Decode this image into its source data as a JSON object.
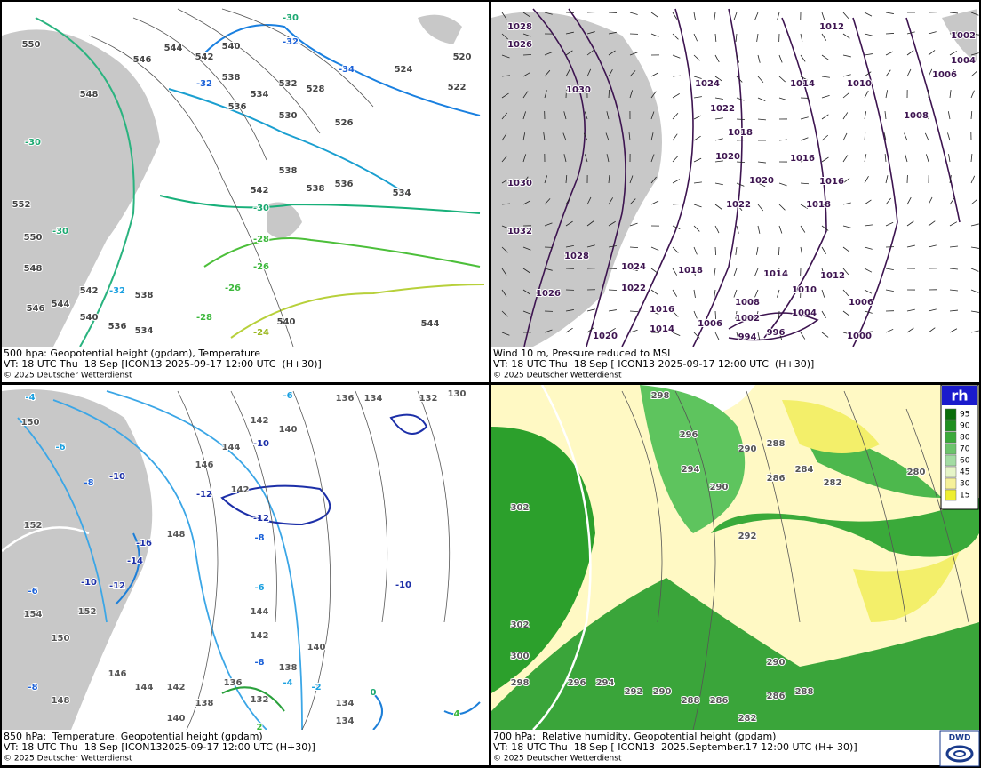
{
  "panels": [
    {
      "caption": {
        "title": "500 hpa: Geopotential height (gpdam), Temperature",
        "valid": "VT: 18 UTC Thu  18 Sep [ICON13 2025-09-17 12:00 UTC  (H+30)]",
        "copyright": "© 2025 Deutscher Wetterdienst"
      },
      "labels": [
        "550",
        "546",
        "544",
        "542",
        "540",
        "538",
        "536",
        "534",
        "532",
        "530",
        "528",
        "526",
        "524",
        "522",
        "520",
        "548",
        "552",
        "550",
        "548",
        "546",
        "544",
        "542",
        "540",
        "538",
        "536",
        "534",
        "538",
        "538",
        "536",
        "534",
        "542",
        "540",
        "544",
        "-30",
        "-32",
        "-34",
        "-32",
        "-30",
        "-30",
        "-30",
        "-28",
        "-26",
        "-26",
        "-28",
        "-24",
        "-32"
      ]
    },
    {
      "caption": {
        "title": "Wind 10 m, Pressure reduced to MSL",
        "valid": "VT: 18 UTC Thu  18 Sep [ ICON13 2025-09-17 12:00 UTC  (H+30)]",
        "copyright": "© 2025 Deutscher Wetterdienst"
      },
      "labels": [
        "1028",
        "1026",
        "1030",
        "1024",
        "1022",
        "1018",
        "1020",
        "1020",
        "1022",
        "1018",
        "1016",
        "1016",
        "1014",
        "1010",
        "1012",
        "1002",
        "1004",
        "1006",
        "1008",
        "1030",
        "1032",
        "1028",
        "1026",
        "1024",
        "1022",
        "1018",
        "1016",
        "1014",
        "1020",
        "1014",
        "1012",
        "1010",
        "1008",
        "1006",
        "1002",
        "1004",
        "1006",
        "996",
        "994",
        "1000"
      ]
    },
    {
      "caption": {
        "title": "850 hPa:  Temperature, Geopotential height (gpdam)",
        "valid": "VT: 18 UTC Thu  18 Sep [ICON132025-09-17 12:00 UTC (H+30)]",
        "copyright": "© 2025 Deutscher Wetterdienst"
      },
      "labels": [
        "150",
        "-6",
        "-8",
        "-10",
        "-12",
        "146",
        "144",
        "142",
        "140",
        "136",
        "134",
        "132",
        "130",
        "-10",
        "-12",
        "142",
        "-8",
        "148",
        "-16",
        "-14",
        "-12",
        "-10",
        "152",
        "154",
        "150",
        "152",
        "148",
        "146",
        "144",
        "142",
        "140",
        "138",
        "136",
        "134",
        "132",
        "144",
        "142",
        "140",
        "138",
        "-8",
        "-6",
        "-4",
        "-2",
        "134",
        "0",
        "-10",
        "4",
        "2",
        "-6",
        "-8",
        "-4",
        "-6"
      ]
    },
    {
      "caption": {
        "title": "700 hPa:  Relative humidity, Geopotential height (gpdam)",
        "valid": "VT: 18 UTC Thu  18 Sep [ ICON13  2025.September.17 12:00 UTC (H+ 30)]",
        "copyright": "© 2025 Deutscher Wetterdienst"
      },
      "labels": [
        "298",
        "296",
        "294",
        "290",
        "288",
        "286",
        "284",
        "282",
        "280",
        "302",
        "302",
        "300",
        "298",
        "296",
        "294",
        "292",
        "290",
        "288",
        "286",
        "282",
        "286",
        "288",
        "290",
        "292",
        "290"
      ]
    }
  ],
  "legend": {
    "title": "rh",
    "entries": [
      "95",
      "90",
      "80",
      "70",
      "60",
      "45",
      "30",
      "15"
    ]
  },
  "logo": "DWD"
}
